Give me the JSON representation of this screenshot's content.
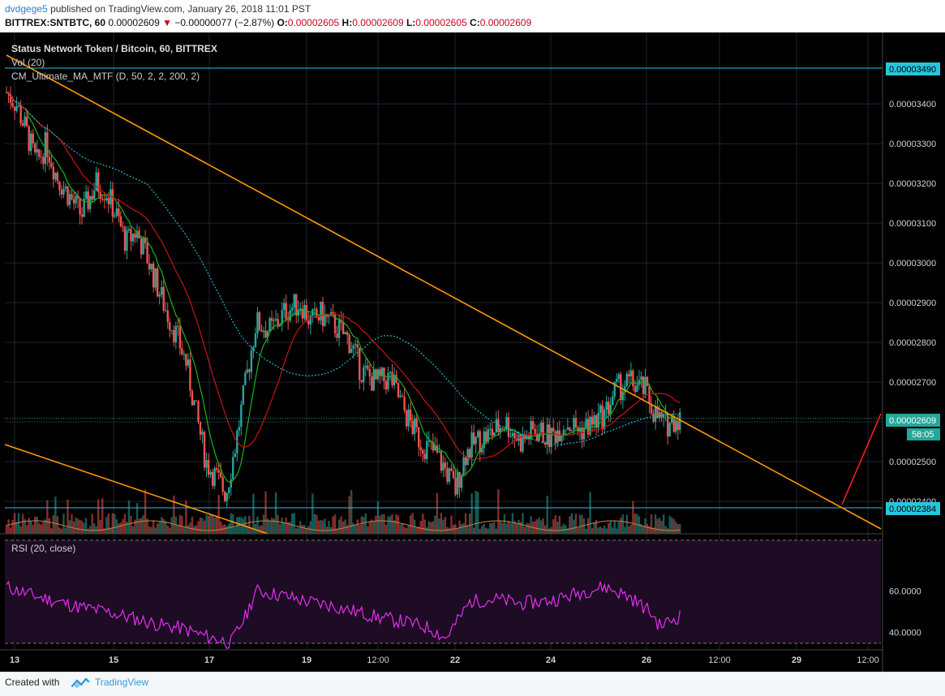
{
  "header": {
    "author": "dvdgege5",
    "published": "published on TradingView.com, January 26, 2018 11:01 PST",
    "symbol": "BITTREX:SNTBTC, 60",
    "last": "0.00002609",
    "change": "−0.00000077 (−2.87%)",
    "open_label": "O:",
    "open": "0.00002605",
    "high_label": "H:",
    "high": "0.00002609",
    "low_label": "L:",
    "low": "0.00002605",
    "close_label": "C:",
    "close": "0.00002609"
  },
  "chart": {
    "title": "Status Network Token / Bitcoin, 60, BITTREX",
    "indicator_vol": "Vol (20)",
    "indicator_ma": "CM_Ultimate_MA_MTF (D, 50, 2, 2, 200, 2)",
    "rsi_title": "RSI (20, close)",
    "price_badge": "0.00002609",
    "countdown_badge": "58:05",
    "hline_top_badge": "0.00003490",
    "hline_bottom_badge": "0.00002384"
  },
  "colors": {
    "background": "#000000",
    "bull": "#26a69a",
    "bear": "#ef5350",
    "trendline": "#ff9800",
    "ma_fast": "#1db31d",
    "ma_slow": "#c81414",
    "ma_200": "#21b7c4",
    "rsi_line": "#e52ef0",
    "rsi_band": "#1d0c24",
    "hline": "#26c6da",
    "projection": "#ef1f1f"
  },
  "footer": {
    "created": "Created with",
    "brand": "TradingView"
  },
  "chart_data": {
    "type": "candlestick",
    "title": "Status Network Token / Bitcoin, 60, BITTREX",
    "price_axis_ticks": [
      "0.00003400",
      "0.00003300",
      "0.00003200",
      "0.00003100",
      "0.00003000",
      "0.00002900",
      "0.00002800",
      "0.00002700",
      "0.00002600",
      "0.00002500",
      "0.00002400"
    ],
    "rsi_axis_ticks": [
      "60.0000",
      "40.0000"
    ],
    "time_axis_ticks": [
      "13",
      "15",
      "17",
      "19",
      "12:00",
      "22",
      "24",
      "26",
      "12:00",
      "29",
      "12:00"
    ],
    "ylim": [
      2.32e-05,
      3.52e-05
    ],
    "horizontal_lines": [
      3.49e-05,
      2.384e-05
    ],
    "last_price": 2.609e-05,
    "close_path": [
      [
        13.0,
        3.43e-05
      ],
      [
        13.2,
        3.4e-05
      ],
      [
        13.4,
        3.33e-05
      ],
      [
        13.6,
        3.25e-05
      ],
      [
        13.8,
        3.3e-05
      ],
      [
        14.0,
        3.22e-05
      ],
      [
        14.2,
        3.18e-05
      ],
      [
        14.5,
        3.12e-05
      ],
      [
        14.8,
        3.2e-05
      ],
      [
        15.0,
        3.18e-05
      ],
      [
        15.2,
        3.12e-05
      ],
      [
        15.4,
        3.05e-05
      ],
      [
        15.6,
        3.08e-05
      ],
      [
        15.8,
        3.02e-05
      ],
      [
        16.0,
        2.95e-05
      ],
      [
        16.2,
        2.88e-05
      ],
      [
        16.4,
        2.82e-05
      ],
      [
        16.6,
        2.75e-05
      ],
      [
        16.8,
        2.62e-05
      ],
      [
        17.0,
        2.5e-05
      ],
      [
        17.2,
        2.46e-05
      ],
      [
        17.4,
        2.42e-05
      ],
      [
        17.6,
        2.55e-05
      ],
      [
        17.8,
        2.7e-05
      ],
      [
        18.0,
        2.85e-05
      ],
      [
        18.3,
        2.83e-05
      ],
      [
        18.6,
        2.88e-05
      ],
      [
        18.9,
        2.9e-05
      ],
      [
        19.1,
        2.85e-05
      ],
      [
        19.3,
        2.87e-05
      ],
      [
        19.6,
        2.84e-05
      ],
      [
        19.9,
        2.8e-05
      ],
      [
        20.1,
        2.73e-05
      ],
      [
        20.4,
        2.7e-05
      ],
      [
        20.7,
        2.71e-05
      ],
      [
        21.0,
        2.62e-05
      ],
      [
        21.3,
        2.55e-05
      ],
      [
        21.6,
        2.52e-05
      ],
      [
        21.8,
        2.48e-05
      ],
      [
        22.0,
        2.43e-05
      ],
      [
        22.2,
        2.52e-05
      ],
      [
        22.4,
        2.55e-05
      ],
      [
        22.7,
        2.57e-05
      ],
      [
        23.0,
        2.6e-05
      ],
      [
        23.3,
        2.55e-05
      ],
      [
        23.6,
        2.58e-05
      ],
      [
        23.9,
        2.56e-05
      ],
      [
        24.2,
        2.6e-05
      ],
      [
        24.5,
        2.58e-05
      ],
      [
        24.8,
        2.6e-05
      ],
      [
        25.0,
        2.62e-05
      ],
      [
        25.2,
        2.68e-05
      ],
      [
        25.5,
        2.7e-05
      ],
      [
        25.8,
        2.68e-05
      ],
      [
        26.0,
        2.62e-05
      ],
      [
        26.2,
        2.59e-05
      ],
      [
        26.4,
        2.61e-05
      ],
      [
        26.5,
        2.609e-05
      ]
    ],
    "series": [
      {
        "name": "Vol (20)",
        "type": "volume"
      },
      {
        "name": "CM_Ultimate_MA_MTF (D, 50, 2, 2, 200, 2)",
        "type": "moving_average"
      },
      {
        "name": "RSI (20, close)",
        "type": "oscillator",
        "values_approx": [
          [
            13.0,
            62
          ],
          [
            13.5,
            58
          ],
          [
            14.0,
            55
          ],
          [
            14.5,
            52
          ],
          [
            15.0,
            50
          ],
          [
            15.5,
            47
          ],
          [
            16.0,
            44
          ],
          [
            16.5,
            42
          ],
          [
            17.0,
            38
          ],
          [
            17.5,
            35
          ],
          [
            17.8,
            48
          ],
          [
            18.0,
            60
          ],
          [
            18.5,
            58
          ],
          [
            19.0,
            55
          ],
          [
            19.5,
            53
          ],
          [
            20.0,
            50
          ],
          [
            20.5,
            47
          ],
          [
            21.0,
            45
          ],
          [
            21.5,
            42
          ],
          [
            21.8,
            37
          ],
          [
            22.0,
            44
          ],
          [
            22.3,
            55
          ],
          [
            22.8,
            56
          ],
          [
            23.3,
            54
          ],
          [
            23.8,
            55
          ],
          [
            24.2,
            57
          ],
          [
            24.6,
            60
          ],
          [
            25.0,
            62
          ],
          [
            25.5,
            57
          ],
          [
            25.9,
            50
          ],
          [
            26.1,
            43
          ],
          [
            26.5,
            48
          ]
        ]
      }
    ]
  }
}
